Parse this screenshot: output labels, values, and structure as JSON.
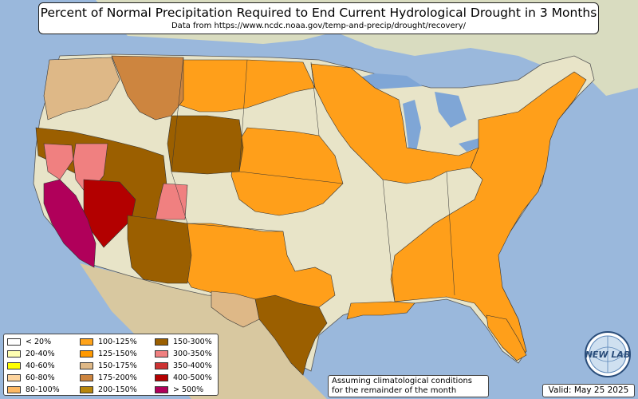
{
  "header": {
    "title": "Percent of Normal Precipitation Required to End Current Hydrological Drought in 3 Months",
    "subtitle": "Data from https://www.ncdc.noaa.gov/temp-and-precip/drought/recovery/"
  },
  "legend": {
    "items": [
      {
        "label": "< 20%",
        "color": "#ffffff"
      },
      {
        "label": "20-40%",
        "color": "#ffffb2"
      },
      {
        "label": "40-60%",
        "color": "#ffff00"
      },
      {
        "label": "60-80%",
        "color": "#fdd49e"
      },
      {
        "label": "80-100%",
        "color": "#fdb863"
      },
      {
        "label": "100-125%",
        "color": "#ffa31a"
      },
      {
        "label": "125-150%",
        "color": "#ff9900"
      },
      {
        "label": "150-175%",
        "color": "#deb887"
      },
      {
        "label": "175-200%",
        "color": "#cd853f"
      },
      {
        "label": "200-150%",
        "color": "#b8860b"
      },
      {
        "label": "150-300%",
        "color": "#9b5f00"
      },
      {
        "label": "300-350%",
        "color": "#f08080"
      },
      {
        "label": "350-400%",
        "color": "#cd3333"
      },
      {
        "label": "400-500%",
        "color": "#b30000"
      },
      {
        "label": "> 500%",
        "color": "#b0005a"
      }
    ]
  },
  "note": {
    "line1": "Assuming climatological conditions",
    "line2": "for the remainder of the month"
  },
  "valid_text": "Valid: May 25 2025",
  "logo": {
    "text": "NEW LAB",
    "icon": "globe-logo-icon"
  },
  "map_colors": {
    "ocean": "#9ab8dc",
    "land": "#e8e4c8",
    "lake": "#7fa6d6",
    "orange": "#ff9f1a",
    "tan": "#deb887",
    "brown": "#9b5f00",
    "pink": "#f08080",
    "red": "#b30000",
    "magenta": "#b0005a"
  }
}
